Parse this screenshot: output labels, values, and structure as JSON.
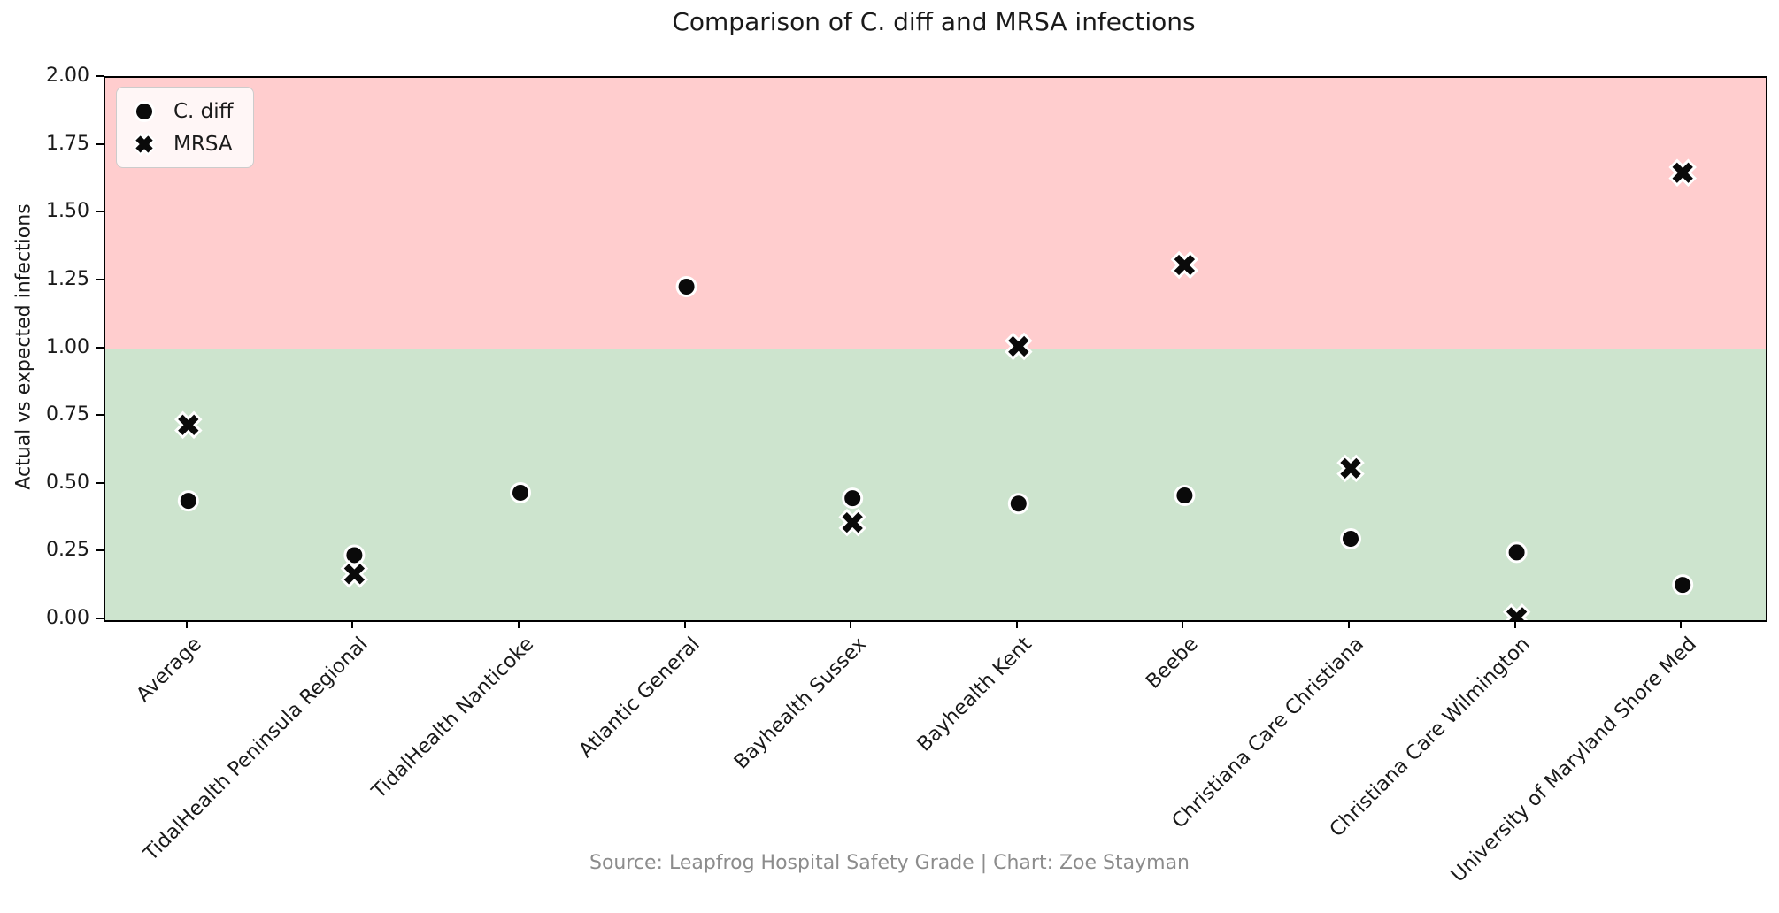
{
  "chart_data": {
    "type": "scatter",
    "title": "Comparison of C. diff and MRSA infections",
    "ylabel": "Actual vs expected infections",
    "xlabel": "",
    "source_caption": "Source: Leapfrog Hospital Safety Grade | Chart: Zoe Stayman",
    "ylim": [
      0,
      2
    ],
    "ytick_labels": [
      "0.00",
      "0.25",
      "0.50",
      "0.75",
      "1.00",
      "1.25",
      "1.50",
      "1.75",
      "2.00"
    ],
    "categories": [
      "Average",
      "TidalHealth Peninsula Regional",
      "TidalHealth Nanticoke",
      "Atlantic General",
      "Bayhealth Sussex",
      "Bayhealth Kent",
      "Beebe",
      "Christiana Care Christiana",
      "Christiana Care Wilmington",
      "University of Maryland Shore Med"
    ],
    "series": [
      {
        "name": "C. diff",
        "marker": "circle",
        "color": "#0a0a0a",
        "values": [
          0.44,
          0.24,
          0.47,
          1.23,
          0.45,
          0.43,
          0.46,
          0.3,
          0.25,
          0.13
        ]
      },
      {
        "name": "MRSA",
        "marker": "x",
        "color": "#0a0a0a",
        "values": [
          0.72,
          0.17,
          null,
          null,
          0.36,
          1.01,
          1.31,
          0.56,
          0.01,
          1.65
        ]
      }
    ],
    "marker_edge_color": "#ffffff",
    "bands": [
      {
        "y_from": 1.0,
        "y_to": 2.0,
        "color": "#ffcdce"
      },
      {
        "y_from": 0.0,
        "y_to": 1.0,
        "color": "#cde4ce"
      }
    ],
    "grid": false,
    "legend": {
      "position": "upper-left"
    }
  }
}
